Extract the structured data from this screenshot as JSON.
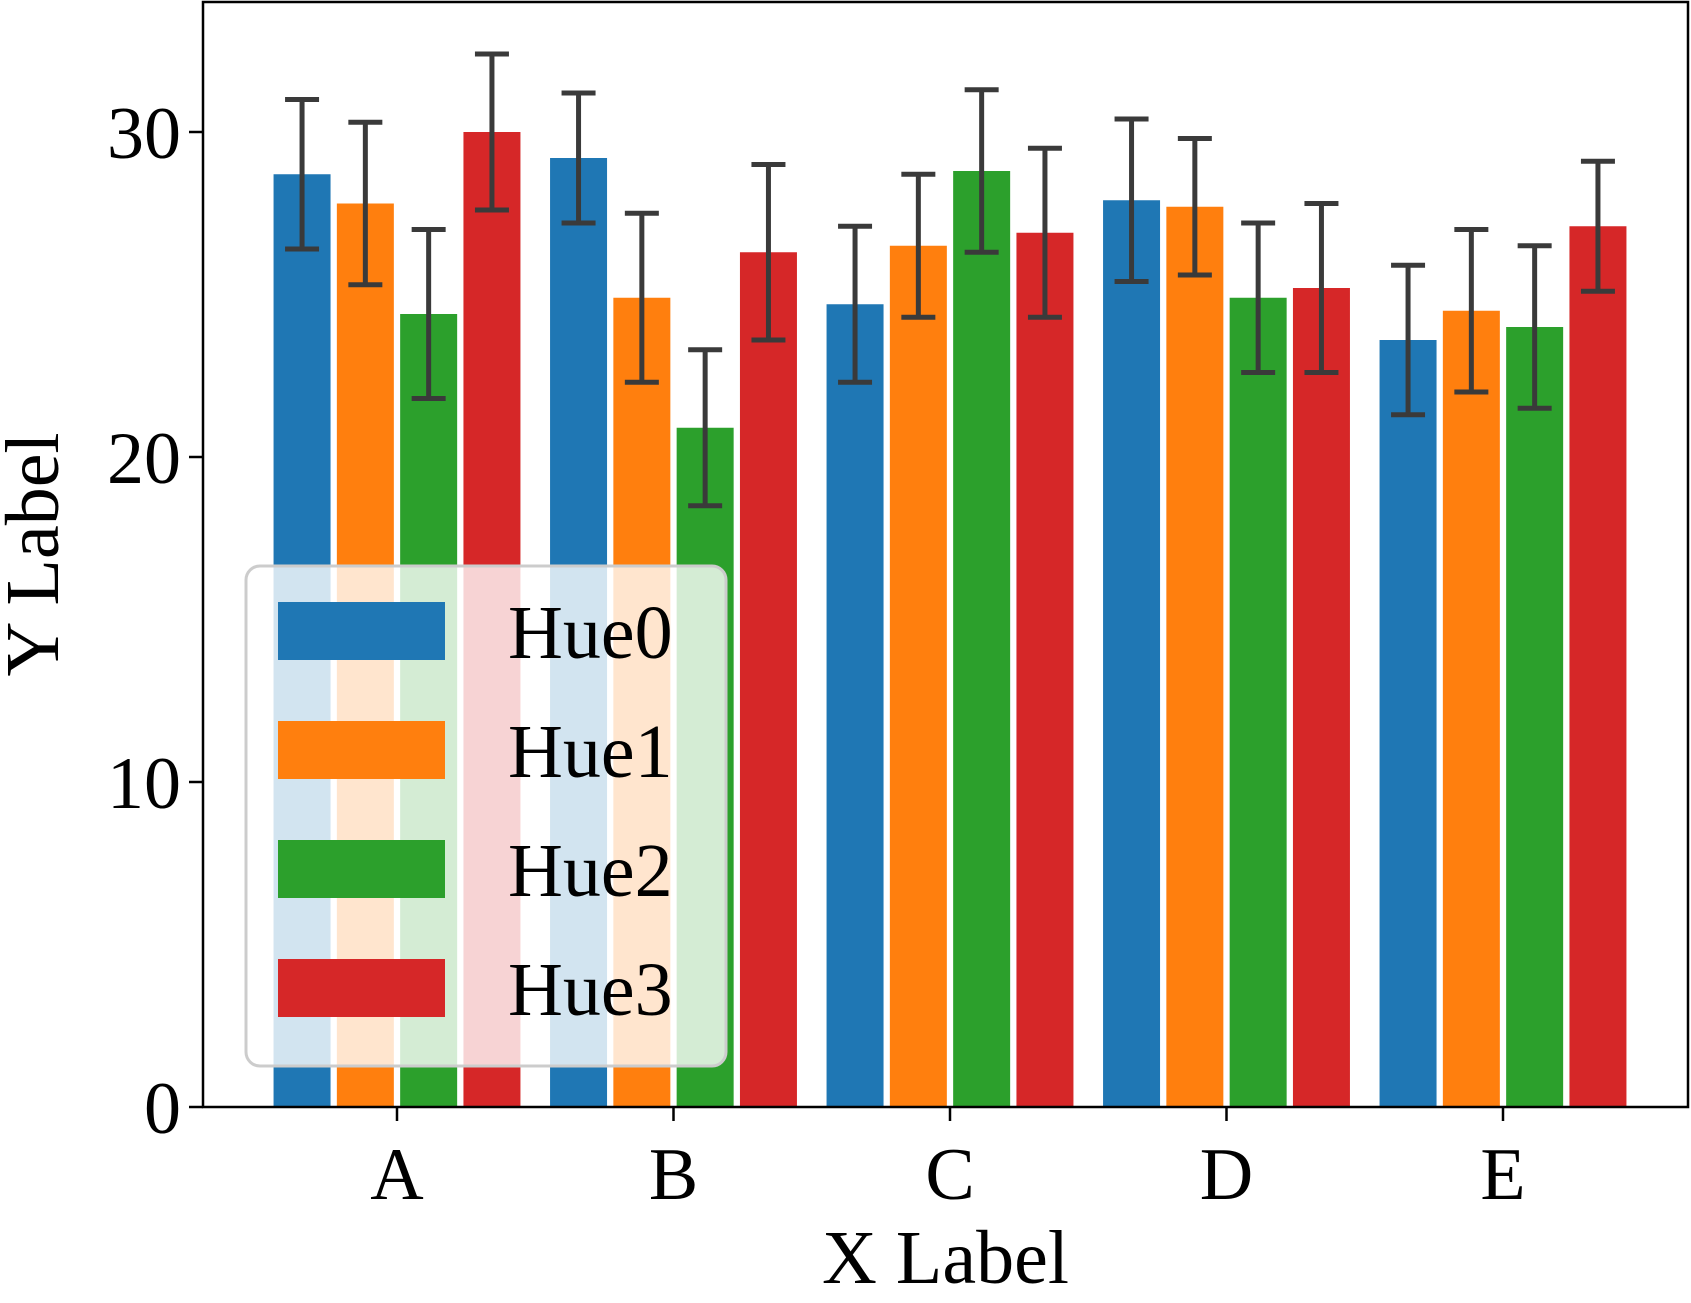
{
  "chart_data": {
    "type": "bar",
    "xlabel": "X Label",
    "ylabel": "Y Label",
    "categories": [
      "A",
      "B",
      "C",
      "D",
      "E"
    ],
    "ylim": [
      0,
      34
    ],
    "yticks": [
      0,
      10,
      20,
      30
    ],
    "grid": false,
    "legend_position": "lower-left",
    "error_bar_color": "#3a3a3a",
    "series": [
      {
        "name": "Hue0",
        "color": "#1f77b4",
        "values": [
          28.7,
          29.2,
          24.7,
          27.9,
          23.6
        ],
        "errors": [
          2.3,
          2.0,
          2.4,
          2.5,
          2.3
        ]
      },
      {
        "name": "Hue1",
        "color": "#ff7f0e",
        "values": [
          27.8,
          24.9,
          26.5,
          27.7,
          24.5
        ],
        "errors": [
          2.5,
          2.6,
          2.2,
          2.1,
          2.5
        ]
      },
      {
        "name": "Hue2",
        "color": "#2ca02c",
        "values": [
          24.4,
          20.9,
          28.8,
          24.9,
          24.0
        ],
        "errors": [
          2.6,
          2.4,
          2.5,
          2.3,
          2.5
        ]
      },
      {
        "name": "Hue3",
        "color": "#d62728",
        "values": [
          30.0,
          26.3,
          26.9,
          25.2,
          27.1
        ],
        "errors": [
          2.4,
          2.7,
          2.6,
          2.6,
          2.0
        ]
      }
    ]
  }
}
